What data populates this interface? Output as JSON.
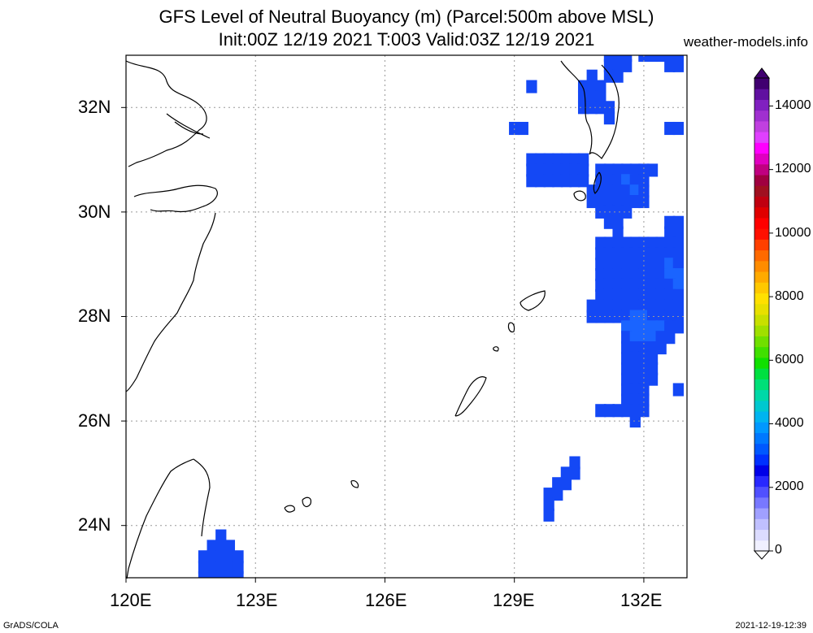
{
  "header": {
    "title_line1": "GFS Level of Neutral Buoyancy (m) (Parcel:500m above MSL)",
    "title_line2": "Init:00Z 12/19 2021 T:003 Valid:03Z 12/19 2021",
    "site": "weather-models.info"
  },
  "axes": {
    "lon_labels": [
      "120E",
      "123E",
      "126E",
      "129E",
      "132E"
    ],
    "lat_labels": [
      "32N",
      "30N",
      "28N",
      "26N",
      "24N"
    ],
    "lon_range": [
      120,
      133
    ],
    "lat_range": [
      23,
      33
    ]
  },
  "colorbar": {
    "labels": [
      "14000",
      "12000",
      "10000",
      "8000",
      "6000",
      "4000",
      "2000",
      "0"
    ],
    "colors": [
      "#f0f0ff",
      "#dcdcff",
      "#c0c0ff",
      "#a0a0ff",
      "#7878ff",
      "#5050ff",
      "#2828ff",
      "#0000e8",
      "#0030ff",
      "#0058ff",
      "#0078ff",
      "#0098ff",
      "#00b4f0",
      "#00c8d0",
      "#00d8a8",
      "#00e078",
      "#00e040",
      "#10e000",
      "#40e000",
      "#70e000",
      "#a0e000",
      "#c8e000",
      "#e8e000",
      "#ffe000",
      "#ffc800",
      "#ffaa00",
      "#ff8c00",
      "#ff6a00",
      "#ff4000",
      "#ff1000",
      "#ff0000",
      "#e00000",
      "#c00010",
      "#a01020",
      "#a00040",
      "#c00080",
      "#e000c0",
      "#ff00ff",
      "#e040ff",
      "#c040e0",
      "#a030d0",
      "#8020c0",
      "#6010a0",
      "#400070"
    ]
  },
  "footer": {
    "left": "GrADS/COLA",
    "right": "2021-12-19-12:39"
  },
  "field_cells": [
    [
      131.2,
      33.0
    ],
    [
      131.4,
      33.0
    ],
    [
      131.6,
      33.0
    ],
    [
      132.0,
      33.0
    ],
    [
      132.2,
      33.0
    ],
    [
      132.4,
      33.0
    ],
    [
      132.6,
      33.0
    ],
    [
      132.8,
      33.0
    ],
    [
      131.2,
      32.8
    ],
    [
      131.4,
      32.8
    ],
    [
      131.6,
      32.8
    ],
    [
      132.6,
      32.8
    ],
    [
      132.8,
      32.8
    ],
    [
      130.8,
      32.6
    ],
    [
      131.2,
      32.6
    ],
    [
      131.4,
      32.6
    ],
    [
      129.4,
      32.4
    ],
    [
      130.6,
      32.4
    ],
    [
      130.8,
      32.4
    ],
    [
      131.0,
      32.4
    ],
    [
      130.6,
      32.2
    ],
    [
      130.8,
      32.2
    ],
    [
      131.0,
      32.2
    ],
    [
      130.6,
      32.0
    ],
    [
      130.8,
      32.0
    ],
    [
      131.0,
      32.0
    ],
    [
      131.2,
      32.0
    ],
    [
      131.2,
      31.8
    ],
    [
      129.0,
      31.6
    ],
    [
      129.2,
      31.6
    ],
    [
      132.6,
      31.6
    ],
    [
      132.8,
      31.6
    ],
    [
      129.4,
      31.0
    ],
    [
      129.6,
      31.0
    ],
    [
      129.8,
      31.0
    ],
    [
      130.0,
      31.0
    ],
    [
      130.2,
      31.0
    ],
    [
      130.4,
      31.0
    ],
    [
      130.6,
      31.0
    ],
    [
      129.4,
      30.8
    ],
    [
      129.6,
      30.8
    ],
    [
      129.8,
      30.8
    ],
    [
      130.0,
      30.8
    ],
    [
      130.2,
      30.8
    ],
    [
      130.4,
      30.8
    ],
    [
      130.6,
      30.8
    ],
    [
      131.0,
      30.8
    ],
    [
      131.2,
      30.8
    ],
    [
      131.4,
      30.8
    ],
    [
      131.6,
      30.8
    ],
    [
      131.8,
      30.8
    ],
    [
      132.0,
      30.8
    ],
    [
      132.2,
      30.8
    ],
    [
      129.4,
      30.6
    ],
    [
      129.6,
      30.6
    ],
    [
      129.8,
      30.6
    ],
    [
      130.0,
      30.6
    ],
    [
      130.2,
      30.6
    ],
    [
      130.4,
      30.6
    ],
    [
      130.6,
      30.6
    ],
    [
      131.0,
      30.6
    ],
    [
      131.2,
      30.6
    ],
    [
      131.4,
      30.6
    ],
    [
      131.6,
      30.6
    ],
    [
      131.8,
      30.6
    ],
    [
      132.0,
      30.6
    ],
    [
      130.8,
      30.4
    ],
    [
      131.0,
      30.4
    ],
    [
      131.2,
      30.4
    ],
    [
      131.4,
      30.4
    ],
    [
      131.6,
      30.4
    ],
    [
      131.8,
      30.4
    ],
    [
      132.0,
      30.4
    ],
    [
      130.8,
      30.2
    ],
    [
      131.0,
      30.2
    ],
    [
      131.2,
      30.2
    ],
    [
      131.4,
      30.2
    ],
    [
      131.6,
      30.2
    ],
    [
      131.8,
      30.2
    ],
    [
      132.0,
      30.2
    ],
    [
      131.0,
      30.0
    ],
    [
      131.2,
      30.0
    ],
    [
      131.4,
      30.0
    ],
    [
      131.6,
      30.0
    ],
    [
      131.2,
      29.8
    ],
    [
      131.4,
      29.8
    ],
    [
      132.6,
      29.8
    ],
    [
      132.8,
      29.8
    ],
    [
      131.4,
      29.6
    ],
    [
      132.6,
      29.6
    ],
    [
      132.8,
      29.6
    ],
    [
      131.0,
      29.4
    ],
    [
      131.2,
      29.4
    ],
    [
      131.4,
      29.4
    ],
    [
      131.6,
      29.4
    ],
    [
      131.8,
      29.4
    ],
    [
      132.0,
      29.4
    ],
    [
      132.2,
      29.4
    ],
    [
      132.4,
      29.4
    ],
    [
      132.6,
      29.4
    ],
    [
      132.8,
      29.4
    ],
    [
      131.0,
      29.2
    ],
    [
      131.2,
      29.2
    ],
    [
      131.4,
      29.2
    ],
    [
      131.6,
      29.2
    ],
    [
      131.8,
      29.2
    ],
    [
      132.0,
      29.2
    ],
    [
      132.2,
      29.2
    ],
    [
      132.4,
      29.2
    ],
    [
      132.6,
      29.2
    ],
    [
      132.8,
      29.2
    ],
    [
      131.0,
      29.0
    ],
    [
      131.2,
      29.0
    ],
    [
      131.4,
      29.0
    ],
    [
      131.6,
      29.0
    ],
    [
      131.8,
      29.0
    ],
    [
      132.0,
      29.0
    ],
    [
      132.2,
      29.0
    ],
    [
      132.4,
      29.0
    ],
    [
      132.6,
      29.0
    ],
    [
      132.8,
      29.0
    ],
    [
      131.0,
      28.8
    ],
    [
      131.2,
      28.8
    ],
    [
      131.4,
      28.8
    ],
    [
      131.6,
      28.8
    ],
    [
      131.8,
      28.8
    ],
    [
      132.0,
      28.8
    ],
    [
      132.2,
      28.8
    ],
    [
      132.4,
      28.8
    ],
    [
      132.6,
      28.8
    ],
    [
      132.8,
      28.8
    ],
    [
      131.0,
      28.6
    ],
    [
      131.2,
      28.6
    ],
    [
      131.4,
      28.6
    ],
    [
      131.6,
      28.6
    ],
    [
      131.8,
      28.6
    ],
    [
      132.0,
      28.6
    ],
    [
      132.2,
      28.6
    ],
    [
      132.4,
      28.6
    ],
    [
      132.6,
      28.6
    ],
    [
      132.8,
      28.6
    ],
    [
      131.0,
      28.4
    ],
    [
      131.2,
      28.4
    ],
    [
      131.4,
      28.4
    ],
    [
      131.6,
      28.4
    ],
    [
      131.8,
      28.4
    ],
    [
      132.0,
      28.4
    ],
    [
      132.2,
      28.4
    ],
    [
      132.4,
      28.4
    ],
    [
      132.6,
      28.4
    ],
    [
      132.8,
      28.4
    ],
    [
      130.8,
      28.2
    ],
    [
      131.0,
      28.2
    ],
    [
      131.2,
      28.2
    ],
    [
      131.4,
      28.2
    ],
    [
      131.6,
      28.2
    ],
    [
      131.8,
      28.2
    ],
    [
      132.0,
      28.2
    ],
    [
      132.2,
      28.2
    ],
    [
      132.4,
      28.2
    ],
    [
      132.6,
      28.2
    ],
    [
      132.8,
      28.2
    ],
    [
      130.8,
      28.0
    ],
    [
      131.0,
      28.0
    ],
    [
      131.2,
      28.0
    ],
    [
      131.4,
      28.0
    ],
    [
      131.6,
      28.0
    ],
    [
      131.8,
      28.0
    ],
    [
      132.0,
      28.0
    ],
    [
      132.2,
      28.0
    ],
    [
      132.4,
      28.0
    ],
    [
      132.6,
      28.0
    ],
    [
      132.8,
      28.0
    ],
    [
      131.6,
      27.8
    ],
    [
      131.8,
      27.8
    ],
    [
      132.0,
      27.8
    ],
    [
      132.2,
      27.8
    ],
    [
      132.4,
      27.8
    ],
    [
      132.6,
      27.8
    ],
    [
      132.8,
      27.8
    ],
    [
      131.6,
      27.6
    ],
    [
      131.8,
      27.6
    ],
    [
      132.0,
      27.6
    ],
    [
      132.2,
      27.6
    ],
    [
      132.4,
      27.6
    ],
    [
      132.6,
      27.6
    ],
    [
      131.6,
      27.4
    ],
    [
      131.8,
      27.4
    ],
    [
      132.0,
      27.4
    ],
    [
      132.2,
      27.4
    ],
    [
      132.4,
      27.4
    ],
    [
      131.6,
      27.2
    ],
    [
      131.8,
      27.2
    ],
    [
      132.0,
      27.2
    ],
    [
      132.2,
      27.2
    ],
    [
      131.6,
      27.0
    ],
    [
      131.8,
      27.0
    ],
    [
      132.0,
      27.0
    ],
    [
      132.2,
      27.0
    ],
    [
      131.6,
      26.8
    ],
    [
      131.8,
      26.8
    ],
    [
      132.0,
      26.8
    ],
    [
      132.2,
      26.8
    ],
    [
      131.6,
      26.6
    ],
    [
      131.8,
      26.6
    ],
    [
      132.0,
      26.6
    ],
    [
      132.8,
      26.6
    ],
    [
      131.6,
      26.4
    ],
    [
      131.8,
      26.4
    ],
    [
      132.0,
      26.4
    ],
    [
      131.0,
      26.2
    ],
    [
      131.2,
      26.2
    ],
    [
      131.4,
      26.2
    ],
    [
      131.6,
      26.2
    ],
    [
      131.8,
      26.2
    ],
    [
      132.0,
      26.2
    ],
    [
      131.8,
      26.0
    ],
    [
      130.4,
      25.2
    ],
    [
      130.2,
      25.0
    ],
    [
      130.4,
      25.0
    ],
    [
      130.0,
      24.8
    ],
    [
      130.2,
      24.8
    ],
    [
      129.8,
      24.6
    ],
    [
      130.0,
      24.6
    ],
    [
      129.8,
      24.4
    ],
    [
      129.8,
      24.2
    ],
    [
      122.2,
      23.8
    ],
    [
      122.0,
      23.6
    ],
    [
      122.2,
      23.6
    ],
    [
      122.4,
      23.6
    ],
    [
      121.8,
      23.4
    ],
    [
      122.0,
      23.4
    ],
    [
      122.2,
      23.4
    ],
    [
      122.4,
      23.4
    ],
    [
      122.6,
      23.4
    ],
    [
      121.8,
      23.2
    ],
    [
      122.0,
      23.2
    ],
    [
      122.2,
      23.2
    ],
    [
      122.4,
      23.2
    ],
    [
      122.6,
      23.2
    ],
    [
      121.8,
      23.0
    ],
    [
      122.0,
      23.0
    ],
    [
      122.2,
      23.0
    ],
    [
      122.4,
      23.0
    ],
    [
      122.6,
      23.0
    ]
  ],
  "light_cells": [
    [
      131.6,
      27.8
    ],
    [
      131.8,
      27.8
    ],
    [
      132.0,
      27.8
    ],
    [
      132.2,
      27.8
    ],
    [
      132.4,
      27.8
    ],
    [
      131.8,
      28.0
    ],
    [
      132.0,
      28.0
    ],
    [
      131.8,
      27.6
    ],
    [
      132.0,
      27.6
    ],
    [
      132.2,
      27.6
    ],
    [
      132.6,
      29.0
    ],
    [
      132.6,
      28.8
    ],
    [
      132.8,
      28.8
    ],
    [
      132.8,
      28.6
    ],
    [
      131.6,
      30.6
    ],
    [
      131.8,
      30.4
    ]
  ]
}
